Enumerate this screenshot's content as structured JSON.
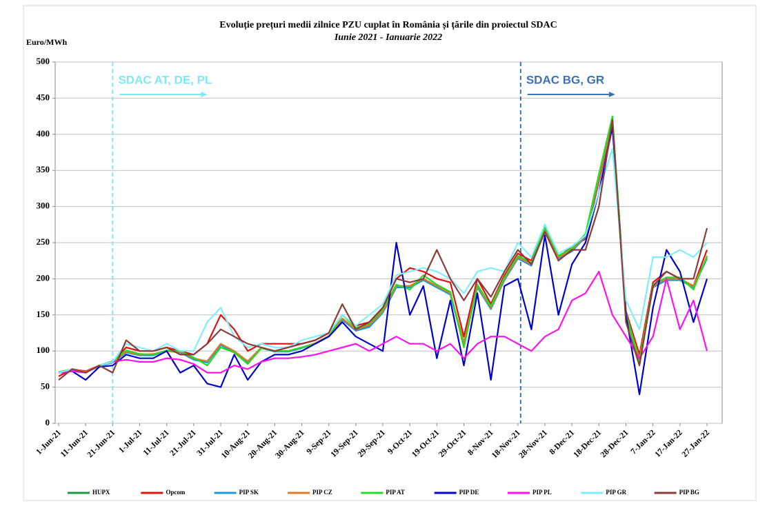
{
  "chart_data": {
    "type": "line",
    "title": "Evoluție prețuri medii zilnice PZU cuplat în România și țările din proiectul SDAC",
    "subtitle": "Iunie 2021 - Ianuarie 2022",
    "y_label": "Euro/MWh",
    "categories": [
      "1-Jun-21",
      null,
      "11-Jun-21",
      null,
      "21-Jun-21",
      null,
      "1-Jul-21",
      null,
      "11-Jul-21",
      null,
      "21-Jul-21",
      null,
      "31-Jul-21",
      null,
      "10-Aug-21",
      null,
      "20-Aug-21",
      null,
      "30-Aug-21",
      null,
      "9-Sep-21",
      null,
      "19-Sep-21",
      null,
      "29-Sep-21",
      null,
      "9-Oct-21",
      null,
      "19-Oct-21",
      null,
      "29-Oct-21",
      null,
      "8-Nov-21",
      null,
      "18-Nov-21",
      null,
      "28-Nov-21",
      null,
      "8-Dec-21",
      null,
      "18-Dec-21",
      null,
      "28-Dec-21",
      null,
      "7-Jan-22",
      null,
      "17-Jan-22",
      null,
      "27-Jan-22"
    ],
    "ylim": [
      0,
      500
    ],
    "yticks": [
      0,
      50,
      100,
      150,
      200,
      250,
      300,
      350,
      400,
      450,
      500
    ],
    "grid": true,
    "annotations": [
      {
        "text": "SDAC AT, DE, PL",
        "x": "21-Jun-21",
        "color": "#7ceaf2"
      },
      {
        "text": "SDAC BG, GR",
        "x": "18-Nov-21",
        "color": "#3b72b4"
      }
    ],
    "legend": "bottom",
    "series": [
      {
        "name": "HUPX",
        "color": "#1b9a45",
        "values": [
          70,
          75,
          70,
          80,
          85,
          100,
          95,
          95,
          100,
          100,
          90,
          85,
          110,
          100,
          85,
          105,
          100,
          100,
          105,
          110,
          120,
          145,
          130,
          135,
          155,
          190,
          190,
          200,
          190,
          180,
          110,
          190,
          160,
          200,
          230,
          220,
          270,
          230,
          240,
          260,
          340,
          420,
          150,
          90,
          190,
          200,
          200,
          190,
          230
        ]
      },
      {
        "name": "Opcom",
        "color": "#e01010",
        "values": [
          65,
          75,
          72,
          80,
          85,
          105,
          100,
          100,
          105,
          100,
          95,
          110,
          150,
          130,
          100,
          110,
          110,
          110,
          110,
          115,
          125,
          150,
          135,
          140,
          160,
          200,
          215,
          210,
          200,
          195,
          120,
          200,
          165,
          205,
          235,
          225,
          275,
          230,
          245,
          255,
          335,
          415,
          155,
          95,
          195,
          210,
          200,
          190,
          240
        ]
      },
      {
        "name": "PIP SK",
        "color": "#1e9bd7",
        "values": [
          70,
          74,
          70,
          79,
          84,
          98,
          94,
          94,
          100,
          98,
          88,
          84,
          108,
          98,
          84,
          104,
          99,
          99,
          104,
          110,
          120,
          143,
          128,
          133,
          153,
          188,
          188,
          198,
          188,
          178,
          108,
          188,
          158,
          198,
          228,
          218,
          268,
          228,
          238,
          258,
          338,
          418,
          148,
          88,
          188,
          198,
          198,
          188,
          228
        ]
      },
      {
        "name": "PIP CZ",
        "color": "#e07b22",
        "values": [
          70,
          75,
          71,
          80,
          85,
          99,
          95,
          96,
          100,
          99,
          90,
          86,
          110,
          100,
          86,
          105,
          100,
          100,
          105,
          111,
          121,
          145,
          130,
          136,
          155,
          190,
          190,
          200,
          190,
          180,
          112,
          190,
          160,
          200,
          230,
          220,
          270,
          230,
          240,
          260,
          340,
          420,
          150,
          90,
          190,
          200,
          200,
          190,
          230
        ]
      },
      {
        "name": "PIP AT",
        "color": "#22dd22",
        "values": [
          71,
          75,
          70,
          80,
          86,
          101,
          96,
          95,
          101,
          100,
          91,
          80,
          105,
          98,
          82,
          104,
          100,
          100,
          105,
          110,
          120,
          150,
          132,
          138,
          158,
          192,
          185,
          205,
          192,
          182,
          105,
          192,
          162,
          202,
          232,
          222,
          272,
          232,
          242,
          262,
          345,
          425,
          152,
          85,
          192,
          202,
          202,
          185,
          232
        ]
      },
      {
        "name": "PIP DE",
        "color": "#0000cc",
        "values": [
          70,
          72,
          60,
          78,
          80,
          95,
          90,
          90,
          100,
          70,
          80,
          55,
          50,
          95,
          60,
          85,
          95,
          95,
          100,
          110,
          120,
          140,
          120,
          110,
          100,
          250,
          150,
          190,
          90,
          170,
          80,
          180,
          60,
          190,
          200,
          130,
          260,
          150,
          220,
          250,
          320,
          410,
          150,
          40,
          160,
          240,
          210,
          140,
          200
        ]
      },
      {
        "name": "PIP PL",
        "color": "#ff10ee",
        "values": [
          70,
          72,
          70,
          80,
          85,
          88,
          85,
          85,
          90,
          88,
          82,
          70,
          70,
          80,
          75,
          85,
          90,
          90,
          92,
          95,
          100,
          105,
          110,
          100,
          110,
          120,
          110,
          110,
          100,
          110,
          90,
          110,
          120,
          120,
          110,
          100,
          120,
          130,
          170,
          180,
          210,
          150,
          120,
          90,
          120,
          200,
          130,
          170,
          100
        ]
      },
      {
        "name": "PIP GR",
        "color": "#80eefa",
        "values": [
          70,
          75,
          70,
          80,
          85,
          110,
          105,
          100,
          110,
          100,
          100,
          140,
          160,
          120,
          105,
          110,
          105,
          105,
          115,
          120,
          125,
          150,
          135,
          150,
          165,
          205,
          210,
          215,
          210,
          200,
          180,
          210,
          215,
          210,
          250,
          230,
          275,
          235,
          245,
          260,
          320,
          380,
          170,
          130,
          230,
          230,
          240,
          230,
          250
        ]
      },
      {
        "name": "PIP BG",
        "color": "#8c3b3b",
        "values": [
          60,
          75,
          70,
          80,
          70,
          115,
          100,
          100,
          105,
          95,
          95,
          110,
          130,
          120,
          110,
          105,
          100,
          105,
          110,
          115,
          125,
          165,
          130,
          140,
          160,
          200,
          195,
          200,
          240,
          200,
          170,
          200,
          175,
          210,
          240,
          220,
          265,
          225,
          240,
          240,
          300,
          420,
          140,
          80,
          190,
          210,
          200,
          200,
          270
        ]
      }
    ]
  }
}
